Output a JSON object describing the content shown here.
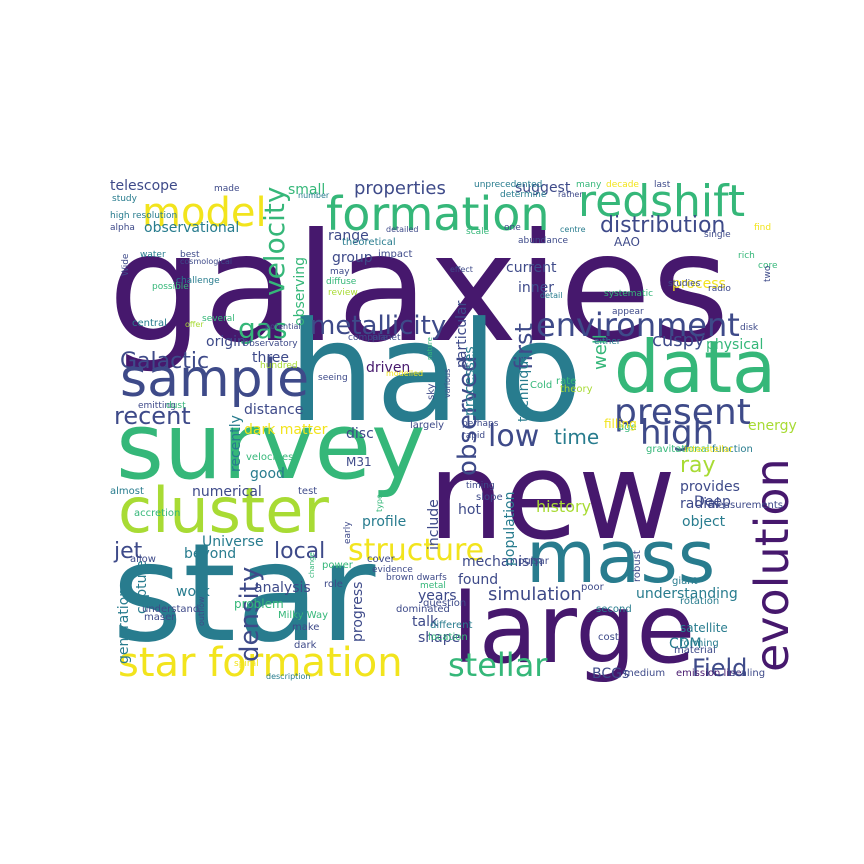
{
  "palette": {
    "purple": "#46186d",
    "indigo": "#3e4a89",
    "teal": "#287c8e",
    "green": "#35b779",
    "lime": "#a8db34",
    "yellow": "#f2e41d"
  },
  "words": [
    {
      "text": "galaxies",
      "color": "purple"
    },
    {
      "text": "halo",
      "color": "teal"
    },
    {
      "text": "star",
      "color": "teal"
    },
    {
      "text": "new",
      "color": "purple"
    },
    {
      "text": "survey",
      "color": "green"
    },
    {
      "text": "mass",
      "color": "teal"
    },
    {
      "text": "large",
      "color": "purple"
    },
    {
      "text": "cluster",
      "color": "lime"
    },
    {
      "text": "data",
      "color": "green"
    },
    {
      "text": "sample",
      "color": "indigo"
    },
    {
      "text": "formation",
      "color": "green"
    },
    {
      "text": "evolution",
      "color": "purple"
    },
    {
      "text": "redshift",
      "color": "green"
    },
    {
      "text": "star formation",
      "color": "yellow"
    },
    {
      "text": "present",
      "color": "indigo"
    },
    {
      "text": "model",
      "color": "yellow"
    },
    {
      "text": "environment",
      "color": "indigo"
    },
    {
      "text": "structure",
      "color": "yellow"
    },
    {
      "text": "stellar",
      "color": "green"
    },
    {
      "text": "high",
      "color": "indigo"
    },
    {
      "text": "low",
      "color": "indigo"
    },
    {
      "text": "metallicity",
      "color": "indigo"
    },
    {
      "text": "gas",
      "color": "green"
    },
    {
      "text": "density",
      "color": "indigo"
    },
    {
      "text": "Galactic",
      "color": "indigo"
    },
    {
      "text": "observed",
      "color": "indigo"
    },
    {
      "text": "velocity",
      "color": "green"
    },
    {
      "text": "Field",
      "color": "indigo"
    },
    {
      "text": "distribution",
      "color": "indigo"
    },
    {
      "text": "local",
      "color": "indigo"
    },
    {
      "text": "recent",
      "color": "indigo"
    },
    {
      "text": "jet",
      "color": "indigo"
    },
    {
      "text": "properties",
      "color": "indigo"
    },
    {
      "text": "time",
      "color": "teal"
    },
    {
      "text": "ray",
      "color": "lime"
    },
    {
      "text": "simulation",
      "color": "indigo"
    },
    {
      "text": "first",
      "color": "indigo"
    },
    {
      "text": "history",
      "color": "lime"
    },
    {
      "text": "mechanism",
      "color": "indigo"
    },
    {
      "text": "found",
      "color": "indigo"
    },
    {
      "text": "understanding",
      "color": "teal"
    },
    {
      "text": "analysis",
      "color": "indigo"
    },
    {
      "text": "work",
      "color": "teal"
    },
    {
      "text": "beyond",
      "color": "teal"
    },
    {
      "text": "Universe",
      "color": "teal"
    },
    {
      "text": "observational",
      "color": "teal"
    },
    {
      "text": "telescope",
      "color": "indigo"
    },
    {
      "text": "suggest",
      "color": "indigo"
    },
    {
      "text": "range",
      "color": "indigo"
    },
    {
      "text": "group",
      "color": "indigo"
    },
    {
      "text": "current",
      "color": "indigo"
    },
    {
      "text": "inner",
      "color": "indigo"
    },
    {
      "text": "process",
      "color": "yellow"
    },
    {
      "text": "origin",
      "color": "indigo"
    },
    {
      "text": "three",
      "color": "indigo"
    },
    {
      "text": "driven",
      "color": "purple"
    },
    {
      "text": "distance",
      "color": "indigo"
    },
    {
      "text": "dark matter",
      "color": "yellow"
    },
    {
      "text": "disc",
      "color": "indigo"
    },
    {
      "text": "physical",
      "color": "green"
    },
    {
      "text": "cuspy",
      "color": "indigo"
    },
    {
      "text": "energy",
      "color": "lime"
    },
    {
      "text": "provides",
      "color": "indigo"
    },
    {
      "text": "radial",
      "color": "indigo"
    },
    {
      "text": "object",
      "color": "teal"
    },
    {
      "text": "Deep",
      "color": "indigo"
    },
    {
      "text": "capture",
      "color": "teal"
    },
    {
      "text": "profile",
      "color": "teal"
    },
    {
      "text": "include",
      "color": "indigo"
    },
    {
      "text": "hot",
      "color": "indigo"
    },
    {
      "text": "population",
      "color": "teal"
    },
    {
      "text": "years",
      "color": "indigo"
    },
    {
      "text": "talk",
      "color": "indigo"
    },
    {
      "text": "shape",
      "color": "indigo"
    },
    {
      "text": "CDM",
      "color": "teal"
    },
    {
      "text": "BCGs",
      "color": "indigo"
    },
    {
      "text": "processes",
      "color": "teal"
    },
    {
      "text": "technique",
      "color": "teal"
    },
    {
      "text": "well",
      "color": "green"
    },
    {
      "text": "numerical",
      "color": "indigo"
    },
    {
      "text": "good",
      "color": "teal"
    },
    {
      "text": "recently",
      "color": "teal"
    },
    {
      "text": "progress",
      "color": "indigo"
    },
    {
      "text": "generation",
      "color": "teal"
    },
    {
      "text": "small",
      "color": "green"
    },
    {
      "text": "M31",
      "color": "indigo"
    },
    {
      "text": "AAO",
      "color": "indigo"
    },
    {
      "text": "observing",
      "color": "green"
    },
    {
      "text": "particular",
      "color": "indigo"
    },
    {
      "text": "emission line",
      "color": "purple"
    },
    {
      "text": "scaling",
      "color": "indigo"
    },
    {
      "text": "medium",
      "color": "indigo"
    },
    {
      "text": "material",
      "color": "indigo"
    },
    {
      "text": "satellite",
      "color": "teal"
    },
    {
      "text": "forming",
      "color": "teal"
    },
    {
      "text": "rotation",
      "color": "teal"
    },
    {
      "text": "giant",
      "color": "teal"
    },
    {
      "text": "measurements",
      "color": "indigo"
    },
    {
      "text": "function",
      "color": "teal"
    },
    {
      "text": "gravitational",
      "color": "green"
    },
    {
      "text": "interstellar",
      "color": "yellow"
    },
    {
      "text": "age",
      "color": "green"
    },
    {
      "text": "filling",
      "color": "yellow"
    },
    {
      "text": "rate",
      "color": "green"
    },
    {
      "text": "theory",
      "color": "lime"
    },
    {
      "text": "Cold",
      "color": "green"
    },
    {
      "text": "pulsar",
      "color": "indigo"
    },
    {
      "text": "slope",
      "color": "indigo"
    },
    {
      "text": "timing",
      "color": "indigo"
    },
    {
      "text": "perhaps",
      "color": "indigo"
    },
    {
      "text": "rapid",
      "color": "indigo"
    },
    {
      "text": "largely",
      "color": "indigo"
    },
    {
      "text": "seeing",
      "color": "indigo"
    },
    {
      "text": "test",
      "color": "indigo"
    },
    {
      "text": "velocities",
      "color": "green"
    },
    {
      "text": "almost",
      "color": "teal"
    },
    {
      "text": "accretion",
      "color": "green"
    },
    {
      "text": "allow",
      "color": "indigo"
    },
    {
      "text": "understand",
      "color": "indigo"
    },
    {
      "text": "maser",
      "color": "indigo"
    },
    {
      "text": "problem",
      "color": "green"
    },
    {
      "text": "Milky Way",
      "color": "green"
    },
    {
      "text": "make",
      "color": "indigo"
    },
    {
      "text": "dark",
      "color": "indigo"
    },
    {
      "text": "role",
      "color": "indigo"
    },
    {
      "text": "power",
      "color": "green"
    },
    {
      "text": "cover",
      "color": "indigo"
    },
    {
      "text": "evidence",
      "color": "indigo"
    },
    {
      "text": "dominated",
      "color": "indigo"
    },
    {
      "text": "brown dwarfs",
      "color": "indigo"
    },
    {
      "text": "metal",
      "color": "green"
    },
    {
      "text": "question",
      "color": "indigo"
    },
    {
      "text": "different",
      "color": "teal"
    },
    {
      "text": "location",
      "color": "green"
    },
    {
      "text": "second",
      "color": "teal"
    },
    {
      "text": "poor",
      "color": "indigo"
    },
    {
      "text": "cost",
      "color": "indigo"
    },
    {
      "text": "robust",
      "color": "indigo"
    },
    {
      "text": "high resolution",
      "color": "teal"
    },
    {
      "text": "alpha",
      "color": "indigo"
    },
    {
      "text": "study",
      "color": "teal"
    },
    {
      "text": "made",
      "color": "indigo"
    },
    {
      "text": "water",
      "color": "teal"
    },
    {
      "text": "best",
      "color": "indigo"
    },
    {
      "text": "cosmological",
      "color": "indigo"
    },
    {
      "text": "possible",
      "color": "green"
    },
    {
      "text": "challenge",
      "color": "teal"
    },
    {
      "text": "Wide",
      "color": "indigo"
    },
    {
      "text": "central",
      "color": "teal"
    },
    {
      "text": "several",
      "color": "green"
    },
    {
      "text": "offer",
      "color": "lime"
    },
    {
      "text": "Observatory",
      "color": "indigo"
    },
    {
      "text": "potential",
      "color": "indigo"
    },
    {
      "text": "hundred",
      "color": "lime"
    },
    {
      "text": "emitting",
      "color": "indigo"
    },
    {
      "text": "dust",
      "color": "green"
    },
    {
      "text": "outflow",
      "color": "indigo"
    },
    {
      "text": "spiral",
      "color": "yellow"
    },
    {
      "text": "bubble",
      "color": "teal"
    },
    {
      "text": "change",
      "color": "green"
    },
    {
      "text": "early",
      "color": "indigo"
    },
    {
      "text": "type",
      "color": "green"
    },
    {
      "text": "description",
      "color": "teal"
    },
    {
      "text": "number",
      "color": "teal"
    },
    {
      "text": "theoretical",
      "color": "teal"
    },
    {
      "text": "may",
      "color": "indigo"
    },
    {
      "text": "diffuse",
      "color": "green"
    },
    {
      "text": "review",
      "color": "lime"
    },
    {
      "text": "compare",
      "color": "indigo"
    },
    {
      "text": "planet",
      "color": "indigo"
    },
    {
      "text": "impact",
      "color": "indigo"
    },
    {
      "text": "detailed",
      "color": "indigo"
    },
    {
      "text": "effect",
      "color": "indigo"
    },
    {
      "text": "modelled",
      "color": "yellow"
    },
    {
      "text": "sky",
      "color": "indigo"
    },
    {
      "text": "various",
      "color": "indigo"
    },
    {
      "text": "nature",
      "color": "green"
    },
    {
      "text": "unprecedented",
      "color": "teal"
    },
    {
      "text": "determine",
      "color": "teal"
    },
    {
      "text": "rather",
      "color": "indigo"
    },
    {
      "text": "one",
      "color": "indigo"
    },
    {
      "text": "scale",
      "color": "green"
    },
    {
      "text": "abundance",
      "color": "indigo"
    },
    {
      "text": "centre",
      "color": "teal"
    },
    {
      "text": "many",
      "color": "green"
    },
    {
      "text": "decade",
      "color": "yellow"
    },
    {
      "text": "last",
      "color": "indigo"
    },
    {
      "text": "single",
      "color": "indigo"
    },
    {
      "text": "find",
      "color": "yellow"
    },
    {
      "text": "rich",
      "color": "green"
    },
    {
      "text": "core",
      "color": "green"
    },
    {
      "text": "radio",
      "color": "indigo"
    },
    {
      "text": "two",
      "color": "indigo"
    },
    {
      "text": "studies",
      "color": "indigo"
    },
    {
      "text": "systematic",
      "color": "green"
    },
    {
      "text": "appear",
      "color": "indigo"
    },
    {
      "text": "detail",
      "color": "teal"
    },
    {
      "text": "disk",
      "color": "indigo"
    },
    {
      "text": "either",
      "color": "teal"
    },
    {
      "text": "factor",
      "color": "teal"
    },
    {
      "text": "unique",
      "color": "green"
    }
  ]
}
